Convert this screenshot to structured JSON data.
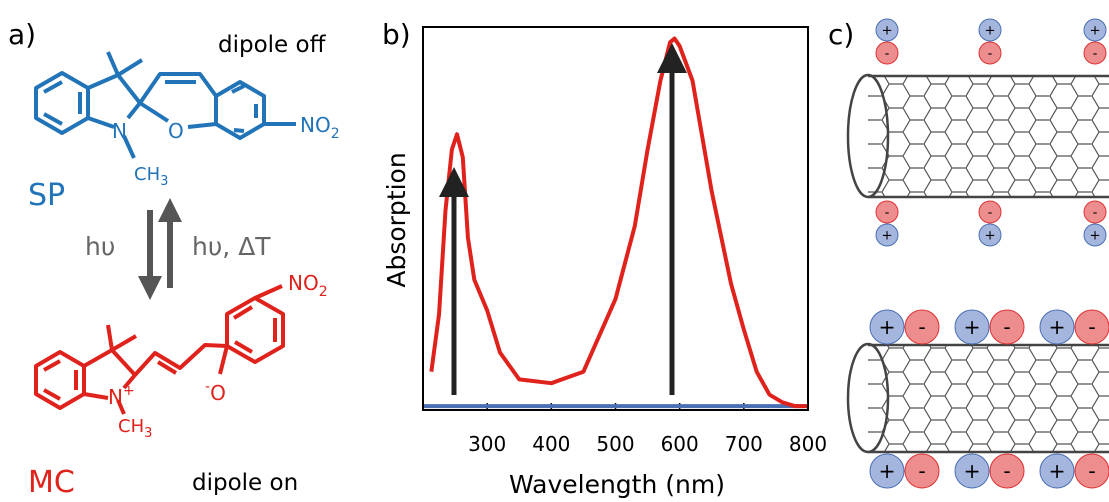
{
  "panel_a": {
    "label": "a)",
    "top_state": "dipole off",
    "sp_nitro": {
      "main": "NO",
      "sub": "2"
    },
    "sp_n": "N",
    "sp_o": "O",
    "sp_methyl": {
      "main": "CH",
      "sub": "3"
    },
    "sp_name": "SP",
    "forward": "hυ",
    "backward": "hυ, ΔT",
    "mc_nitro": {
      "main": "NO",
      "sub": "2"
    },
    "mc_n": {
      "main": "N",
      "sup": "+"
    },
    "mc_o": {
      "sup": "-",
      "main": "O"
    },
    "mc_methyl": {
      "main": "CH",
      "sub": "3"
    },
    "mc_name": "MC",
    "bottom_state": "dipole on"
  },
  "panel_b": {
    "label": "b)"
  },
  "panel_c": {
    "label": "c)",
    "plus": "+",
    "minus": "-"
  },
  "chart_data": {
    "type": "line",
    "xlabel": "Wavelength (nm)",
    "ylabel": "Absorption",
    "xlim": [
      200,
      800
    ],
    "xticks": [
      300,
      400,
      500,
      600,
      700,
      800
    ],
    "ylim": [
      0,
      1
    ],
    "series": [
      {
        "color": "#e0221c",
        "x": [
          213,
          225,
          235,
          245,
          253,
          262,
          270,
          280,
          290,
          300,
          320,
          350,
          400,
          450,
          500,
          530,
          550,
          570,
          585,
          592,
          600,
          620,
          650,
          680,
          700,
          720,
          740,
          760,
          780,
          800
        ],
        "values": [
          0.1,
          0.25,
          0.52,
          0.68,
          0.72,
          0.66,
          0.45,
          0.34,
          0.3,
          0.26,
          0.15,
          0.08,
          0.07,
          0.1,
          0.29,
          0.48,
          0.68,
          0.86,
          0.96,
          0.97,
          0.95,
          0.86,
          0.57,
          0.33,
          0.21,
          0.1,
          0.04,
          0.02,
          0.01,
          0.01
        ]
      },
      {
        "color": "#4a6fb5",
        "x": [
          200,
          800
        ],
        "values": [
          0.01,
          0.01
        ]
      }
    ]
  }
}
